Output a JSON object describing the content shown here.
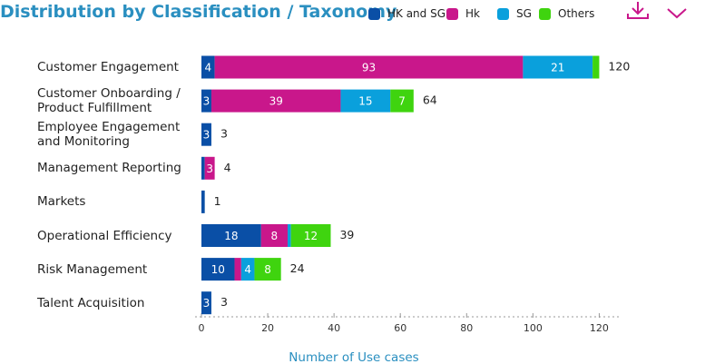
{
  "chart_data": {
    "type": "stacked-bar-horizontal",
    "title": "Distribution by Classification / Taxonomy",
    "x_label": "Number of Use cases",
    "categories": [
      "Customer Engagement",
      "Customer Onboarding / Product Fulfillment",
      "Employee Engagement and Monitoring",
      "Management Reporting",
      "Markets",
      "Operational Efficiency",
      "Risk Management",
      "Talent Acquisition"
    ],
    "series": [
      {
        "name": "HK and SG",
        "color": "#0a4fa6",
        "values": [
          4,
          3,
          3,
          1,
          1,
          18,
          10,
          3
        ]
      },
      {
        "name": "Hk",
        "color": "#c9178b",
        "values": [
          93,
          39,
          null,
          3,
          null,
          8,
          2,
          null
        ]
      },
      {
        "name": "SG",
        "color": "#0aa0dc",
        "values": [
          21,
          15,
          null,
          null,
          null,
          1,
          4,
          null
        ]
      },
      {
        "name": "Others",
        "color": "#3fd40f",
        "values": [
          2,
          7,
          null,
          null,
          null,
          12,
          8,
          null
        ]
      }
    ],
    "totals": [
      120,
      64,
      3,
      4,
      1,
      39,
      24,
      3
    ],
    "xlim": [
      0,
      127
    ],
    "xticks": [
      0,
      20,
      40,
      60,
      80,
      100,
      120
    ]
  }
}
